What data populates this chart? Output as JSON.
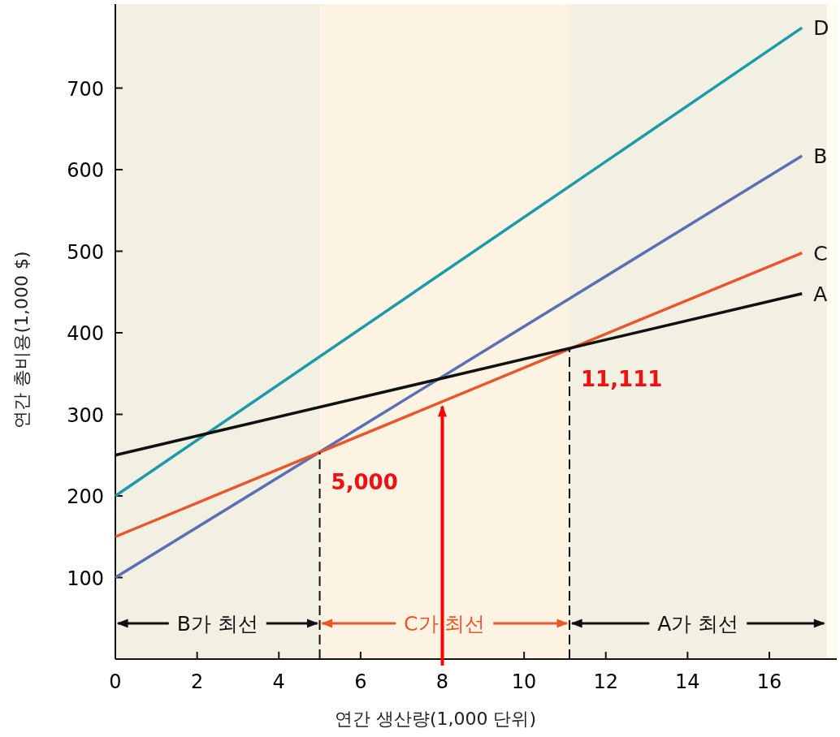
{
  "chart_data": {
    "type": "line",
    "xlabel": "연간 생산량(1,000 단위)",
    "ylabel": "연간 총비용(1,000 $)",
    "xlim": [
      0,
      17.65
    ],
    "ylim": [
      0,
      803
    ],
    "xticks": [
      0,
      2,
      4,
      6,
      8,
      10,
      12,
      14,
      16
    ],
    "yticks": [
      100,
      200,
      300,
      400,
      500,
      600,
      700
    ],
    "x": [
      0,
      16.8
    ],
    "series": [
      {
        "name": "D",
        "color": "#1a9aaa",
        "values": [
          200,
          774
        ]
      },
      {
        "name": "B",
        "color": "#5b6fb5",
        "values": [
          100,
          617
        ]
      },
      {
        "name": "C",
        "color": "#e8562a",
        "values": [
          150,
          498
        ]
      },
      {
        "name": "A",
        "color": "#111111",
        "values": [
          250,
          448
        ]
      }
    ],
    "ref_lines": [
      {
        "axis": "x",
        "value": 5,
        "label": "5,000",
        "color": "#111111",
        "line_style": "dashed"
      },
      {
        "axis": "x",
        "value": 11.111,
        "label": "11,111",
        "color": "#111111",
        "line_style": "dashed"
      },
      {
        "axis": "x",
        "value": 8,
        "color": "#ff0000",
        "line_style": "solid"
      }
    ],
    "bands": [
      {
        "axis": "x",
        "from": 0,
        "to": 5,
        "label": "B가 최선",
        "color": "#111111"
      },
      {
        "axis": "x",
        "from": 5,
        "to": 11.111,
        "label": "C가 최선",
        "color": "#e8562a"
      },
      {
        "axis": "x",
        "from": 11.111,
        "to": 17.4,
        "label": "A가 최선",
        "color": "#111111"
      }
    ],
    "legend": false,
    "grid": false
  }
}
